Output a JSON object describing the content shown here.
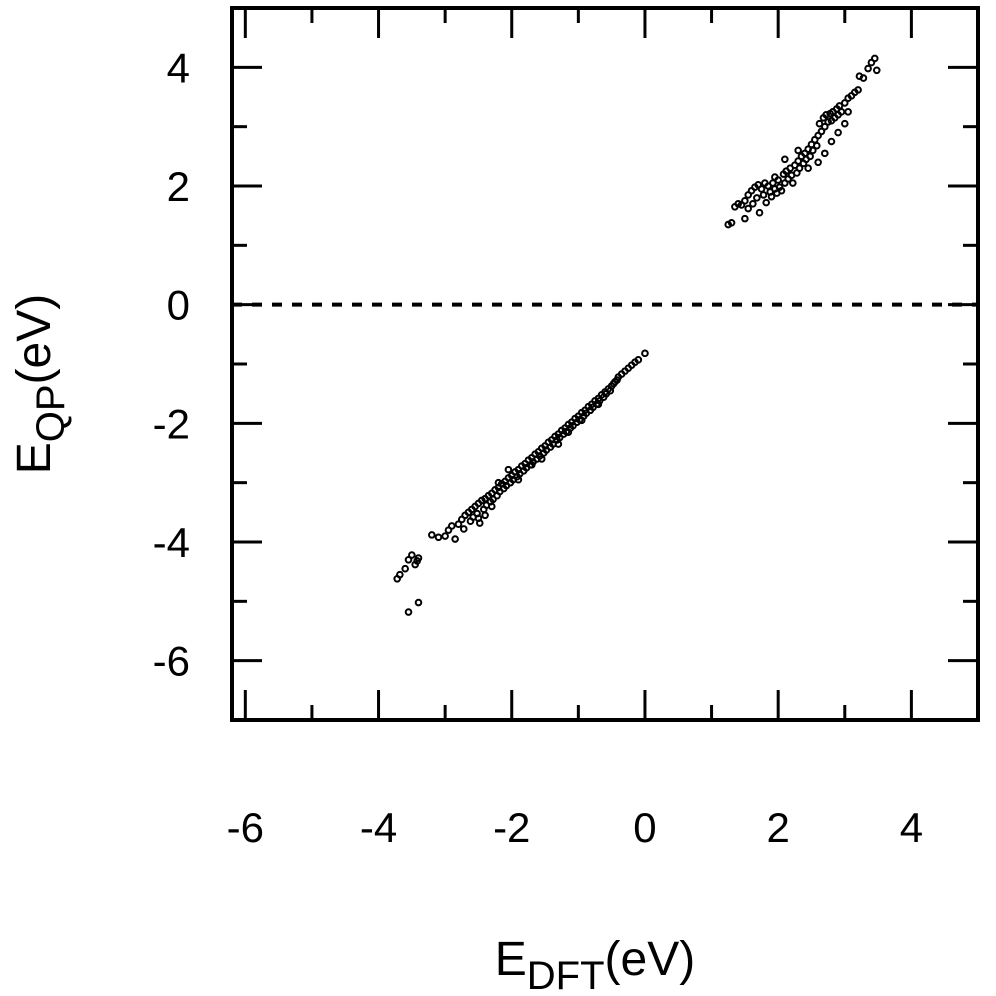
{
  "chart_data": {
    "type": "scatter",
    "xlabel": {
      "main": "E",
      "sub": "DFT",
      "unit": "(eV)"
    },
    "ylabel": {
      "main": "E",
      "sub": "QP",
      "unit": "(eV)"
    },
    "xlim": [
      -6.2,
      5.0
    ],
    "ylim": [
      -7.0,
      5.0
    ],
    "x_ticks": [
      -6,
      -4,
      -2,
      0,
      2,
      4
    ],
    "y_ticks": [
      -6,
      -4,
      -2,
      0,
      2,
      4
    ],
    "x_tick_labels": [
      "-6",
      "-4",
      "-2",
      "0",
      "2",
      "4"
    ],
    "y_tick_labels": [
      "-6",
      "-4",
      "-2",
      "0",
      "2",
      "4"
    ],
    "reference_line": {
      "y": 0,
      "style": "dashed"
    },
    "marker_color": "#000000",
    "series": [
      {
        "points": [
          [
            -3.72,
            -4.62
          ],
          [
            -3.68,
            -4.55
          ],
          [
            -3.6,
            -4.45
          ],
          [
            -3.55,
            -4.3
          ],
          [
            -3.5,
            -4.22
          ],
          [
            -3.45,
            -4.38
          ],
          [
            -3.42,
            -4.32
          ],
          [
            -3.4,
            -4.27
          ],
          [
            -3.55,
            -5.18
          ],
          [
            -3.4,
            -5.02
          ],
          [
            -3.2,
            -3.88
          ],
          [
            -3.1,
            -3.92
          ],
          [
            -3.0,
            -3.9
          ],
          [
            -2.95,
            -3.8
          ],
          [
            -2.9,
            -3.73
          ],
          [
            -2.85,
            -3.95
          ],
          [
            -2.8,
            -3.7
          ],
          [
            -2.75,
            -3.62
          ],
          [
            -2.72,
            -3.78
          ],
          [
            -2.7,
            -3.55
          ],
          [
            -2.65,
            -3.5
          ],
          [
            -2.62,
            -3.65
          ],
          [
            -2.6,
            -3.45
          ],
          [
            -2.58,
            -3.58
          ],
          [
            -2.55,
            -3.4
          ],
          [
            -2.52,
            -3.52
          ],
          [
            -2.5,
            -3.35
          ],
          [
            -2.48,
            -3.68
          ],
          [
            -2.45,
            -3.3
          ],
          [
            -2.42,
            -3.45
          ],
          [
            -2.4,
            -3.27
          ],
          [
            -2.38,
            -3.38
          ],
          [
            -2.35,
            -3.22
          ],
          [
            -2.32,
            -3.32
          ],
          [
            -2.3,
            -3.18
          ],
          [
            -2.28,
            -3.28
          ],
          [
            -2.25,
            -3.12
          ],
          [
            -2.22,
            -3.22
          ],
          [
            -2.2,
            -3.08
          ],
          [
            -2.18,
            -3.15
          ],
          [
            -2.15,
            -3.02
          ],
          [
            -2.12,
            -3.1
          ],
          [
            -2.1,
            -2.98
          ],
          [
            -2.08,
            -3.05
          ],
          [
            -2.05,
            -2.92
          ],
          [
            -2.02,
            -3.0
          ],
          [
            -2.0,
            -2.88
          ],
          [
            -1.98,
            -2.95
          ],
          [
            -1.95,
            -2.82
          ],
          [
            -1.92,
            -2.9
          ],
          [
            -1.9,
            -2.78
          ],
          [
            -1.88,
            -2.85
          ],
          [
            -1.85,
            -2.72
          ],
          [
            -1.82,
            -2.8
          ],
          [
            -1.8,
            -2.68
          ],
          [
            -1.78,
            -2.75
          ],
          [
            -1.75,
            -2.62
          ],
          [
            -1.72,
            -2.7
          ],
          [
            -1.7,
            -2.58
          ],
          [
            -1.68,
            -2.65
          ],
          [
            -1.65,
            -2.52
          ],
          [
            -1.62,
            -2.6
          ],
          [
            -1.6,
            -2.48
          ],
          [
            -1.58,
            -2.55
          ],
          [
            -1.55,
            -2.42
          ],
          [
            -1.52,
            -2.5
          ],
          [
            -1.5,
            -2.38
          ],
          [
            -1.48,
            -2.45
          ],
          [
            -1.45,
            -2.32
          ],
          [
            -1.42,
            -2.4
          ],
          [
            -1.4,
            -2.28
          ],
          [
            -1.38,
            -2.35
          ],
          [
            -1.35,
            -2.22
          ],
          [
            -1.32,
            -2.28
          ],
          [
            -1.3,
            -2.18
          ],
          [
            -1.28,
            -2.24
          ],
          [
            -1.25,
            -2.12
          ],
          [
            -1.22,
            -2.18
          ],
          [
            -1.2,
            -2.08
          ],
          [
            -1.18,
            -2.14
          ],
          [
            -1.15,
            -2.02
          ],
          [
            -1.12,
            -2.08
          ],
          [
            -1.1,
            -1.98
          ],
          [
            -1.08,
            -2.04
          ],
          [
            -1.05,
            -1.92
          ],
          [
            -1.02,
            -1.98
          ],
          [
            -1.0,
            -1.88
          ],
          [
            -0.98,
            -1.94
          ],
          [
            -0.95,
            -1.82
          ],
          [
            -0.92,
            -1.88
          ],
          [
            -0.9,
            -1.78
          ],
          [
            -0.88,
            -1.83
          ],
          [
            -0.85,
            -1.72
          ],
          [
            -0.82,
            -1.78
          ],
          [
            -0.8,
            -1.68
          ],
          [
            -0.78,
            -1.73
          ],
          [
            -0.75,
            -1.62
          ],
          [
            -0.72,
            -1.67
          ],
          [
            -0.7,
            -1.58
          ],
          [
            -0.68,
            -1.62
          ],
          [
            -0.65,
            -1.52
          ],
          [
            -0.62,
            -1.56
          ],
          [
            -0.6,
            -1.47
          ],
          [
            -0.58,
            -1.5
          ],
          [
            -0.55,
            -1.42
          ],
          [
            -0.52,
            -1.45
          ],
          [
            -0.5,
            -1.37
          ],
          [
            -0.47,
            -1.33
          ],
          [
            -0.45,
            -1.3
          ],
          [
            -0.42,
            -1.27
          ],
          [
            -0.4,
            -1.22
          ],
          [
            -0.35,
            -1.17
          ],
          [
            -0.3,
            -1.12
          ],
          [
            -0.25,
            -1.07
          ],
          [
            -0.2,
            -1.02
          ],
          [
            -0.15,
            -0.97
          ],
          [
            -0.1,
            -0.93
          ],
          [
            0.0,
            -0.82
          ],
          [
            -2.5,
            -3.6
          ],
          [
            -2.4,
            -3.55
          ],
          [
            -2.3,
            -3.4
          ],
          [
            -2.2,
            -3.0
          ],
          [
            -2.05,
            -2.78
          ],
          [
            -1.9,
            -2.95
          ],
          [
            -1.7,
            -2.7
          ],
          [
            -1.55,
            -2.6
          ],
          [
            -1.3,
            -2.35
          ],
          [
            -1.15,
            -2.15
          ],
          [
            -0.95,
            -1.95
          ],
          [
            -0.7,
            -1.68
          ],
          [
            1.25,
            1.35
          ],
          [
            1.3,
            1.38
          ],
          [
            1.35,
            1.65
          ],
          [
            1.4,
            1.7
          ],
          [
            1.45,
            1.68
          ],
          [
            1.5,
            1.75
          ],
          [
            1.5,
            1.45
          ],
          [
            1.55,
            1.85
          ],
          [
            1.55,
            1.62
          ],
          [
            1.6,
            1.92
          ],
          [
            1.62,
            1.7
          ],
          [
            1.65,
            1.98
          ],
          [
            1.68,
            1.8
          ],
          [
            1.7,
            2.02
          ],
          [
            1.72,
            1.55
          ],
          [
            1.75,
            1.95
          ],
          [
            1.78,
            1.85
          ],
          [
            1.8,
            2.05
          ],
          [
            1.82,
            1.72
          ],
          [
            1.85,
            2.0
          ],
          [
            1.88,
            1.9
          ],
          [
            1.9,
            1.82
          ],
          [
            1.92,
            2.05
          ],
          [
            1.95,
            1.95
          ],
          [
            1.98,
            1.88
          ],
          [
            2.0,
            2.1
          ],
          [
            2.02,
            1.98
          ],
          [
            2.05,
            1.92
          ],
          [
            2.08,
            2.2
          ],
          [
            2.1,
            2.05
          ],
          [
            2.12,
            2.25
          ],
          [
            2.15,
            2.12
          ],
          [
            2.18,
            2.3
          ],
          [
            2.2,
            2.18
          ],
          [
            2.22,
            2.05
          ],
          [
            2.25,
            2.35
          ],
          [
            2.28,
            2.22
          ],
          [
            2.3,
            2.42
          ],
          [
            2.32,
            2.3
          ],
          [
            2.35,
            2.5
          ],
          [
            2.38,
            2.38
          ],
          [
            2.4,
            2.55
          ],
          [
            2.42,
            2.45
          ],
          [
            2.45,
            2.62
          ],
          [
            2.48,
            2.5
          ],
          [
            2.5,
            2.7
          ],
          [
            2.52,
            2.6
          ],
          [
            2.55,
            2.78
          ],
          [
            2.58,
            2.68
          ],
          [
            2.6,
            2.85
          ],
          [
            2.62,
            3.05
          ],
          [
            2.65,
            2.92
          ],
          [
            2.68,
            3.15
          ],
          [
            2.7,
            3.0
          ],
          [
            2.72,
            3.2
          ],
          [
            2.75,
            3.08
          ],
          [
            2.78,
            3.22
          ],
          [
            2.8,
            3.1
          ],
          [
            2.82,
            3.25
          ],
          [
            2.85,
            3.15
          ],
          [
            2.88,
            3.3
          ],
          [
            2.9,
            3.2
          ],
          [
            2.92,
            3.35
          ],
          [
            2.95,
            3.25
          ],
          [
            3.0,
            3.4
          ],
          [
            3.05,
            3.48
          ],
          [
            3.1,
            3.52
          ],
          [
            3.15,
            3.58
          ],
          [
            3.2,
            3.62
          ],
          [
            3.22,
            3.85
          ],
          [
            3.28,
            3.82
          ],
          [
            3.35,
            3.98
          ],
          [
            3.4,
            4.08
          ],
          [
            3.45,
            4.15
          ],
          [
            3.48,
            3.95
          ],
          [
            2.6,
            2.4
          ],
          [
            2.7,
            2.55
          ],
          [
            2.8,
            2.75
          ],
          [
            2.9,
            2.9
          ],
          [
            3.0,
            3.05
          ],
          [
            3.05,
            3.25
          ],
          [
            2.3,
            2.6
          ],
          [
            2.1,
            2.45
          ],
          [
            1.95,
            2.15
          ],
          [
            2.45,
            2.3
          ]
        ]
      }
    ]
  }
}
